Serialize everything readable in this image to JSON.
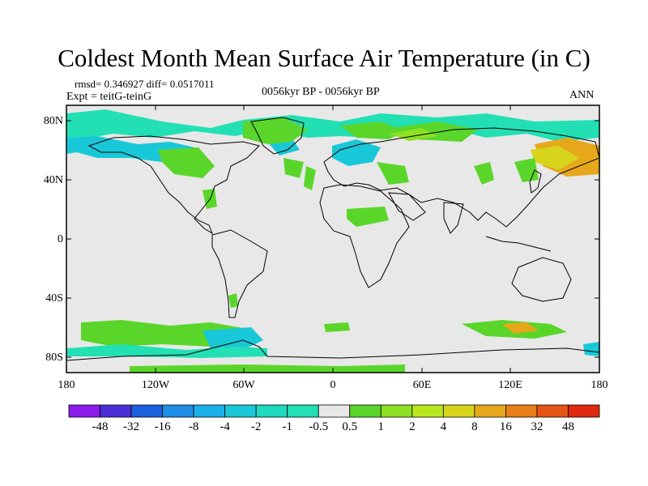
{
  "title": "Coldest Month Mean Surface Air Temperature (in C)",
  "stats": "rmsd= 0.346927 diff= 0.0517011",
  "experiment": "Expt = teitG-teinG",
  "period": "0056kyr BP - 0056kyr BP",
  "season": "ANN",
  "lat_ticks": [
    "80N",
    "40N",
    "0",
    "40S",
    "80S"
  ],
  "lon_ticks": [
    "180",
    "120W",
    "60W",
    "0",
    "60E",
    "120E",
    "180"
  ],
  "colorbar": {
    "labels": [
      "-48",
      "-32",
      "-16",
      "-8",
      "-4",
      "-2",
      "-1",
      "-0.5",
      "0.5",
      "1",
      "2",
      "4",
      "8",
      "16",
      "32",
      "48"
    ],
    "colors": [
      "#8a1be8",
      "#4a2fd6",
      "#1a5fe0",
      "#1e8ee6",
      "#19b2e8",
      "#19c8d8",
      "#1fd8c0",
      "#22e0b4",
      "#e8e8e8",
      "#5ad62a",
      "#8ee022",
      "#b8e61e",
      "#d8d41c",
      "#e6a81a",
      "#ea7e18",
      "#e65416",
      "#e02a10"
    ]
  },
  "map": {
    "background": "#e8e8e8",
    "colors": {
      "teal": "#22e0b4",
      "cyan": "#19c8d8",
      "green": "#5ad62a",
      "lightgreen": "#8ee022",
      "yellow": "#d8d41c",
      "orange": "#e6a81a"
    }
  }
}
